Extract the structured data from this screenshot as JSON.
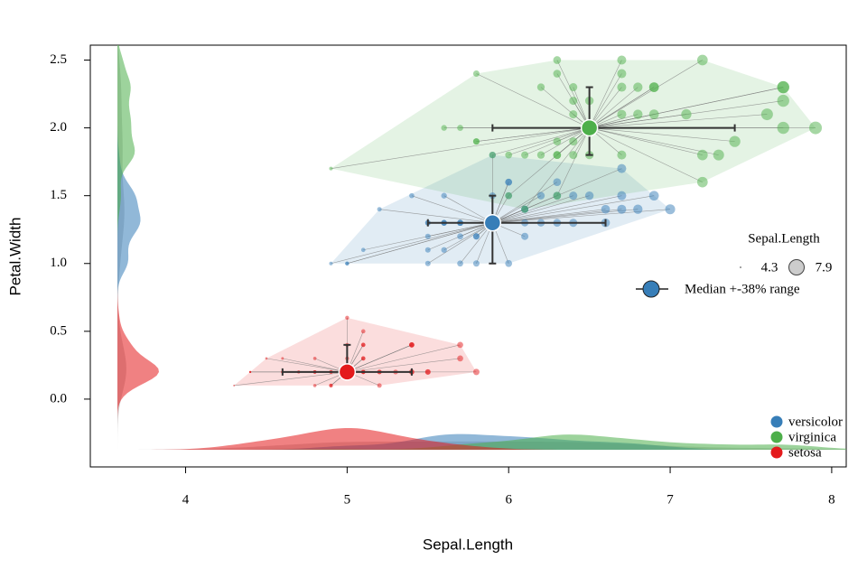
{
  "chart_data": {
    "type": "scatter",
    "x_label": "Sepal.Length",
    "y_label": "Petal.Width",
    "xlim": [
      3.41,
      8.09
    ],
    "ylim": [
      -0.5,
      2.61
    ],
    "xticks": [
      4,
      5,
      6,
      7,
      8
    ],
    "yticks": [
      {
        "value": 0,
        "label": "0.0"
      },
      0.5,
      {
        "value": 1,
        "label": "1.0"
      },
      1.5,
      {
        "value": 2,
        "label": "2.0"
      },
      2.5
    ],
    "series": [
      {
        "name": "versicolor",
        "color": "#377eb8",
        "x": [
          7.0,
          6.4,
          6.9,
          5.5,
          6.5,
          5.7,
          6.3,
          4.9,
          6.6,
          5.2,
          5.0,
          5.9,
          6.0,
          6.1,
          5.6,
          6.7,
          5.6,
          5.8,
          6.2,
          5.6,
          5.9,
          6.1,
          6.3,
          6.1,
          6.4,
          6.6,
          6.8,
          6.7,
          6.0,
          5.7,
          5.5,
          5.5,
          5.8,
          6.0,
          5.4,
          6.0,
          6.7,
          6.3,
          5.6,
          5.5,
          5.5,
          6.1,
          5.8,
          5.0,
          5.6,
          5.7,
          5.7,
          6.2,
          5.1,
          5.7
        ],
        "y": [
          1.4,
          1.5,
          1.5,
          1.3,
          1.5,
          1.3,
          1.6,
          1.0,
          1.3,
          1.4,
          1.0,
          1.5,
          1.0,
          1.4,
          1.3,
          1.4,
          1.5,
          1.0,
          1.5,
          1.1,
          1.8,
          1.3,
          1.5,
          1.2,
          1.3,
          1.4,
          1.4,
          1.7,
          1.5,
          1.0,
          1.1,
          1.0,
          1.2,
          1.6,
          1.5,
          1.6,
          1.5,
          1.3,
          1.3,
          1.3,
          1.2,
          1.4,
          1.2,
          1.0,
          1.3,
          1.2,
          1.3,
          1.3,
          1.1,
          1.3
        ]
      },
      {
        "name": "virginica",
        "color": "#4daf4a",
        "x": [
          6.3,
          5.8,
          7.1,
          6.3,
          6.5,
          7.6,
          4.9,
          7.3,
          6.7,
          7.2,
          6.5,
          6.4,
          6.8,
          5.7,
          5.8,
          6.4,
          6.5,
          7.7,
          7.7,
          6.0,
          6.9,
          5.6,
          7.7,
          6.3,
          6.7,
          7.2,
          6.2,
          6.1,
          6.4,
          7.2,
          7.4,
          7.9,
          6.4,
          6.3,
          6.1,
          7.7,
          6.3,
          6.4,
          6.0,
          6.9,
          6.7,
          6.9,
          5.8,
          6.8,
          6.7,
          6.7,
          6.3,
          6.5,
          6.2,
          5.9
        ],
        "y": [
          2.5,
          1.9,
          2.1,
          1.8,
          2.2,
          2.1,
          1.7,
          1.8,
          1.8,
          2.5,
          2.0,
          1.9,
          2.1,
          2.0,
          2.4,
          2.3,
          1.8,
          2.2,
          2.3,
          1.5,
          2.3,
          2.0,
          2.0,
          1.8,
          2.1,
          1.8,
          1.8,
          1.8,
          2.1,
          1.6,
          1.9,
          2.0,
          2.2,
          1.5,
          1.4,
          2.3,
          2.4,
          1.8,
          1.8,
          2.1,
          2.4,
          2.3,
          1.9,
          2.3,
          2.5,
          2.3,
          1.9,
          2.0,
          2.3,
          1.8
        ]
      },
      {
        "name": "setosa",
        "color": "#e41a1c",
        "x": [
          5.1,
          4.9,
          4.7,
          4.6,
          5.0,
          5.4,
          4.6,
          5.0,
          4.4,
          4.9,
          5.4,
          4.8,
          4.8,
          4.3,
          5.8,
          5.7,
          5.4,
          5.1,
          5.7,
          5.1,
          5.4,
          5.1,
          4.6,
          5.1,
          4.8,
          5.0,
          5.0,
          5.2,
          5.2,
          4.7,
          4.8,
          5.4,
          5.2,
          5.5,
          4.9,
          5.0,
          5.5,
          4.9,
          4.4,
          5.1,
          5.0,
          4.5,
          4.4,
          5.0,
          5.1,
          4.8,
          5.1,
          4.6,
          5.3,
          5.0
        ],
        "y": [
          0.2,
          0.2,
          0.2,
          0.2,
          0.2,
          0.4,
          0.3,
          0.2,
          0.2,
          0.1,
          0.2,
          0.2,
          0.1,
          0.1,
          0.2,
          0.4,
          0.4,
          0.3,
          0.3,
          0.3,
          0.2,
          0.4,
          0.2,
          0.5,
          0.2,
          0.2,
          0.4,
          0.2,
          0.2,
          0.2,
          0.2,
          0.4,
          0.1,
          0.2,
          0.2,
          0.2,
          0.2,
          0.1,
          0.2,
          0.2,
          0.3,
          0.3,
          0.2,
          0.6,
          0.4,
          0.3,
          0.2,
          0.2,
          0.2,
          0.2
        ]
      }
    ],
    "medians": [
      {
        "x": 5.9,
        "y": 1.3,
        "x_range": [
          5.5,
          6.6
        ],
        "y_range": [
          1.0,
          1.5
        ]
      },
      {
        "x": 6.5,
        "y": 2.0,
        "x_range": [
          5.9,
          7.4
        ],
        "y_range": [
          1.8,
          2.3
        ]
      },
      {
        "x": 5.0,
        "y": 0.2,
        "x_range": [
          4.6,
          5.4
        ],
        "y_range": [
          0.2,
          0.4
        ]
      }
    ],
    "size_legend": {
      "title": "Sepal.Length",
      "min": 4.3,
      "max": 7.9
    },
    "median_legend": "Median +-38% range"
  }
}
